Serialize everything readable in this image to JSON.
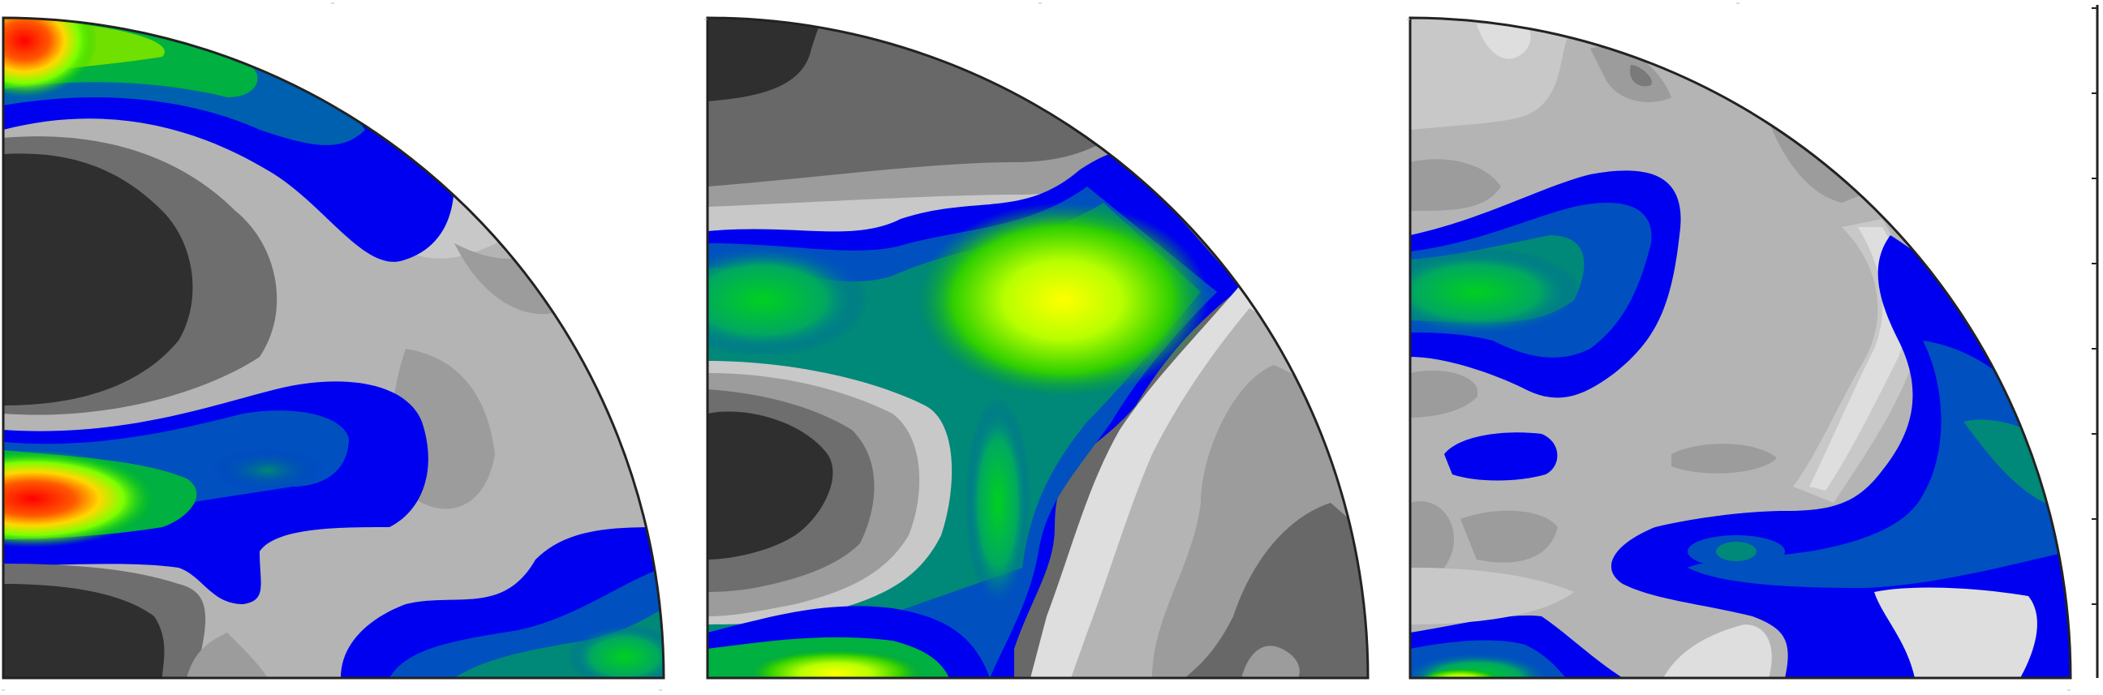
{
  "figure": {
    "panels": [
      {
        "id": "left",
        "description_id": "pole-figure-1"
      },
      {
        "id": "middle",
        "description_id": "pole-figure-2"
      },
      {
        "id": "right",
        "description_id": "pole-figure-3"
      }
    ],
    "colorbar": {
      "ticks": 8
    }
  }
}
